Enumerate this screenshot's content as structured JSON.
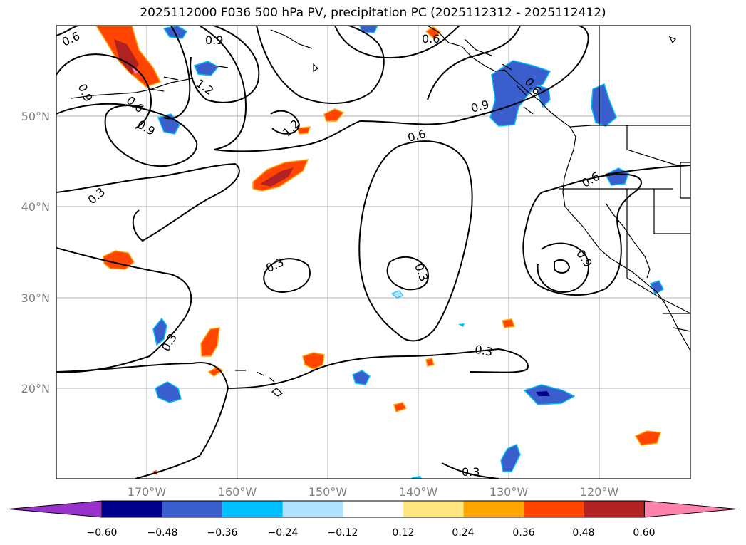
{
  "title": "2025112000 F036 500 hPa PV, precipitation PC (2025112312 - 2025112412)",
  "map": {
    "lat_labels": [
      "50°N",
      "40°N",
      "30°N",
      "20°N"
    ],
    "lon_labels": [
      "170°W",
      "160°W",
      "150°W",
      "140°W",
      "130°W",
      "120°W"
    ],
    "contour_labels": [
      "0.6",
      "0.9",
      "0.9",
      "0.6",
      "0.9",
      "1.2",
      "1.2",
      "0.6",
      "0.3",
      "0.6",
      "0.6",
      "0.9",
      "0.3",
      "0.3",
      "0.3",
      "0.9",
      "0.6",
      "0.3",
      "0.3"
    ]
  },
  "colorbar": {
    "ticks": [
      "−0.60",
      "−0.48",
      "−0.36",
      "−0.24",
      "−0.12",
      "0.12",
      "0.24",
      "0.36",
      "0.48",
      "0.60"
    ],
    "colors": [
      "#9932cc",
      "#00008b",
      "#3a5fcd",
      "#00bfff",
      "#b0e2ff",
      "#ffffff",
      "#ffe680",
      "#ffa500",
      "#ff4500",
      "#b22222",
      "#ff82ab"
    ]
  }
}
